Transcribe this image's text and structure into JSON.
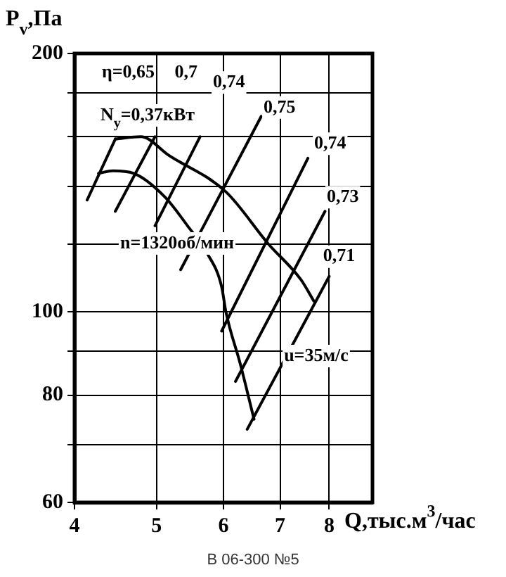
{
  "chart_data": {
    "type": "line",
    "xlabel": "Q,тыс.м$^{3}$/час",
    "ylabel": "P$_{v}$,Па",
    "log": "xy",
    "xlim": [
      4,
      9
    ],
    "ylim": [
      60,
      200
    ],
    "xticks": [
      4,
      5,
      6,
      7,
      8
    ],
    "yticks": [
      60,
      {
        "value": 70,
        "label": null
      },
      80,
      {
        "value": 90,
        "label": null
      },
      100,
      {
        "value": 120,
        "label": null
      },
      {
        "value": 140,
        "label": null
      },
      {
        "value": 160,
        "label": null
      },
      {
        "value": 180,
        "label": null
      },
      200
    ],
    "grid": true,
    "marker": "none",
    "line_style": "solid",
    "series": [
      {
        "x": [
          4.47,
          4.79,
          5.18,
          6.04,
          6.78,
          7.41,
          7.67
        ],
        "values": [
          159,
          160,
          152,
          138,
          120,
          109,
          103
        ],
        "color": "#000000"
      },
      {
        "x": [
          4.27,
          4.44,
          4.7,
          5.12,
          5.44,
          5.74,
          5.97,
          6.04,
          6.28,
          6.52
        ],
        "values": [
          145,
          146,
          145,
          136,
          126,
          117,
          107,
          100,
          87,
          75
        ],
        "color": "#000000"
      },
      {
        "x": [
          4.14,
          4.47
        ],
        "values": [
          135,
          159
        ],
        "color": "#000000"
      },
      {
        "x": [
          4.47,
          4.98
        ],
        "values": [
          131,
          160
        ],
        "color": "#000000"
      },
      {
        "x": [
          4.98,
          5.63
        ],
        "values": [
          126,
          160
        ],
        "color": "#000000"
      },
      {
        "x": [
          5.34,
          6.65
        ],
        "values": [
          112,
          169
        ],
        "color": "#000000"
      },
      {
        "x": [
          5.97,
          7.55
        ],
        "values": [
          95,
          151
        ],
        "color": "#000000"
      },
      {
        "x": [
          6.2,
          7.91
        ],
        "values": [
          83,
          131
        ],
        "color": "#000000"
      },
      {
        "x": [
          6.4,
          8.0
        ],
        "values": [
          73,
          110
        ],
        "color": "#000000"
      }
    ],
    "annotations": [
      {
        "text": "η=0,65",
        "x": 4.63,
        "y": 190
      },
      {
        "text": "0,7",
        "x": 5.42,
        "y": 190
      },
      {
        "text": "0,74",
        "x": 6.09,
        "y": 185
      },
      {
        "text": "0,75",
        "x": 6.99,
        "y": 173
      },
      {
        "text": "0,74",
        "x": 8.02,
        "y": 157
      },
      {
        "text": "0,73",
        "x": 8.3,
        "y": 136
      },
      {
        "text": "0,71",
        "x": 8.22,
        "y": 116
      },
      "N$_{у}$=0,37кВт",
      "n=1320об/мин",
      "u=35м/с",
      "В 06-300 №5"
    ]
  }
}
